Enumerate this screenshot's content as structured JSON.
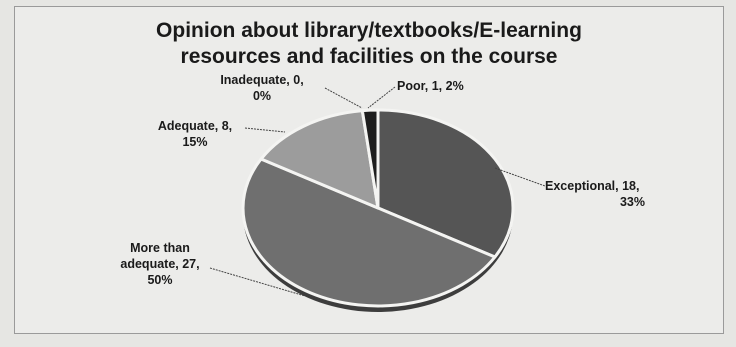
{
  "chart_data": {
    "type": "pie",
    "title_lines": [
      "Opinion about library/textbooks/E-learning",
      "resources and facilities on the course"
    ],
    "slices": [
      {
        "label_lines": [
          "Exceptional, 18,",
          "33%"
        ],
        "value": 18,
        "percent": 33,
        "color": "#555555"
      },
      {
        "label_lines": [
          "More than",
          "adequate, 27,",
          "50%"
        ],
        "value": 27,
        "percent": 50,
        "color": "#6f6f6f"
      },
      {
        "label_lines": [
          "Adequate, 8,",
          "15%"
        ],
        "value": 8,
        "percent": 15,
        "color": "#9c9c9c"
      },
      {
        "label_lines": [
          "Inadequate, 0,",
          "0%"
        ],
        "value": 0,
        "percent": 0,
        "color": "#bdbdbd"
      },
      {
        "label_lines": [
          "Poor, 1, 2%"
        ],
        "value": 1,
        "percent": 2,
        "color": "#1e1e1e"
      }
    ],
    "legend": "none",
    "grid": false
  }
}
